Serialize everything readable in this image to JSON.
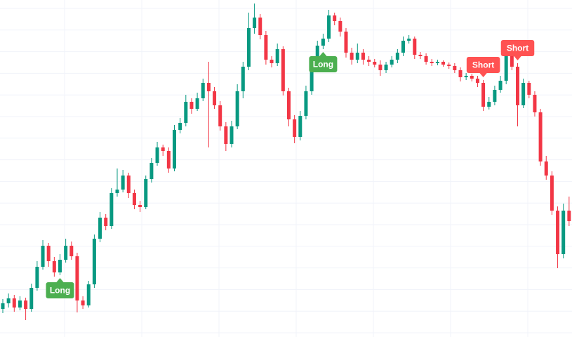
{
  "chart_data": {
    "type": "candlestick",
    "ylim": [
      0,
      480
    ],
    "up_color": "#089981",
    "down_color": "#f23645",
    "open": [
      40,
      48,
      55,
      42,
      52,
      40,
      70,
      100,
      130,
      108,
      92,
      110,
      130,
      115,
      52,
      45,
      75,
      140,
      170,
      158,
      205,
      210,
      230,
      205,
      188,
      185,
      225,
      248,
      270,
      265,
      240,
      295,
      305,
      335,
      325,
      340,
      362,
      350,
      330,
      300,
      275,
      300,
      350,
      385,
      440,
      455,
      430,
      395,
      390,
      410,
      350,
      310,
      285,
      315,
      350,
      385,
      415,
      425,
      458,
      450,
      435,
      405,
      395,
      405,
      395,
      392,
      388,
      380,
      388,
      395,
      405,
      422,
      425,
      402,
      400,
      392,
      390,
      392,
      388,
      386,
      380,
      370,
      372,
      368,
      362,
      328,
      335,
      352,
      365,
      410,
      385,
      330,
      362,
      345,
      320,
      250,
      230,
      180,
      118,
      180
    ],
    "high": [
      54,
      62,
      60,
      58,
      56,
      76,
      108,
      138,
      134,
      114,
      118,
      140,
      136,
      120,
      58,
      80,
      146,
      178,
      175,
      212,
      240,
      238,
      234,
      210,
      194,
      230,
      255,
      278,
      274,
      270,
      302,
      312,
      345,
      340,
      348,
      368,
      392,
      356,
      336,
      306,
      308,
      360,
      392,
      462,
      475,
      460,
      436,
      400,
      418,
      414,
      355,
      316,
      322,
      358,
      392,
      422,
      432,
      466,
      462,
      455,
      440,
      412,
      418,
      410,
      400,
      396,
      394,
      392,
      400,
      410,
      428,
      430,
      428,
      406,
      404,
      396,
      395,
      394,
      391,
      390,
      384,
      376,
      375,
      372,
      366,
      342,
      358,
      372,
      418,
      414,
      390,
      368,
      365,
      350,
      325,
      258,
      236,
      186,
      190,
      200
    ],
    "low": [
      34,
      42,
      36,
      38,
      24,
      36,
      66,
      96,
      100,
      86,
      88,
      106,
      110,
      35,
      40,
      42,
      70,
      135,
      152,
      154,
      200,
      206,
      198,
      182,
      178,
      182,
      220,
      244,
      258,
      234,
      236,
      290,
      300,
      318,
      322,
      336,
      270,
      325,
      294,
      265,
      270,
      296,
      340,
      380,
      432,
      424,
      388,
      384,
      386,
      344,
      300,
      276,
      280,
      310,
      345,
      380,
      410,
      420,
      444,
      428,
      398,
      388,
      390,
      388,
      386,
      384,
      372,
      376,
      384,
      390,
      400,
      418,
      396,
      396,
      388,
      386,
      387,
      385,
      382,
      376,
      364,
      366,
      364,
      356,
      322,
      324,
      330,
      348,
      360,
      380,
      300,
      326,
      340,
      314,
      244,
      224,
      174,
      98,
      112,
      158
    ],
    "close": [
      48,
      55,
      42,
      52,
      40,
      70,
      100,
      130,
      108,
      92,
      110,
      130,
      115,
      52,
      45,
      75,
      140,
      170,
      158,
      205,
      210,
      230,
      205,
      188,
      185,
      225,
      248,
      270,
      265,
      240,
      295,
      305,
      335,
      325,
      340,
      362,
      350,
      330,
      300,
      275,
      300,
      350,
      385,
      440,
      455,
      430,
      395,
      390,
      410,
      350,
      310,
      285,
      315,
      350,
      385,
      415,
      425,
      458,
      450,
      435,
      405,
      395,
      405,
      395,
      392,
      388,
      380,
      388,
      395,
      405,
      422,
      425,
      402,
      400,
      392,
      390,
      392,
      388,
      386,
      380,
      370,
      372,
      368,
      362,
      328,
      335,
      352,
      365,
      410,
      385,
      330,
      362,
      345,
      320,
      250,
      230,
      180,
      118,
      180,
      165
    ],
    "signals": [
      {
        "label": "Long",
        "index": 10,
        "position": "below",
        "color": "#4caf50"
      },
      {
        "label": "Long",
        "index": 56,
        "position": "below",
        "color": "#4caf50"
      },
      {
        "label": "Short",
        "index": 84,
        "position": "above",
        "color": "#ff5252"
      },
      {
        "label": "Short",
        "index": 90,
        "position": "above",
        "color": "#ff5252"
      }
    ]
  }
}
